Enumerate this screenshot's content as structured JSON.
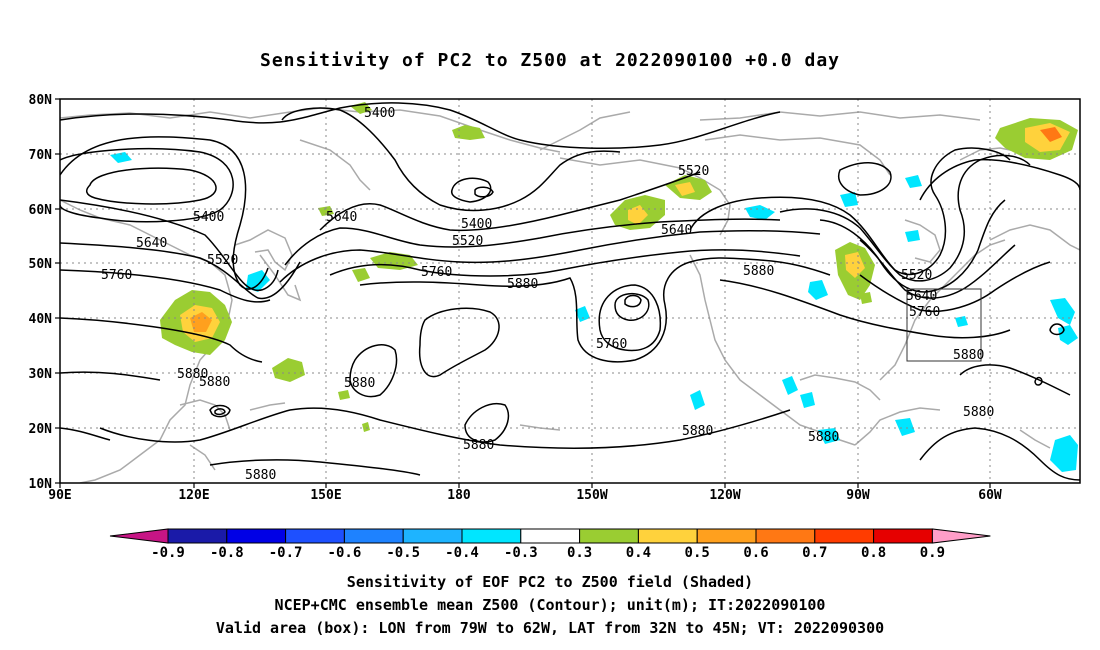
{
  "title": "Sensitivity of PC2 to Z500 at 2022090100 +0.0 day",
  "lat_ticks": [
    "80N",
    "70N",
    "60N",
    "50N",
    "40N",
    "30N",
    "20N",
    "10N"
  ],
  "lon_ticks": [
    "90E",
    "120E",
    "150E",
    "180",
    "150W",
    "120W",
    "90W",
    "60W"
  ],
  "contour_labels": [
    {
      "text": "5400",
      "key": "a"
    },
    {
      "text": "5520",
      "key": "b"
    },
    {
      "text": "5400",
      "key": "c"
    },
    {
      "text": "5640",
      "key": "d"
    },
    {
      "text": "5400",
      "key": "e"
    },
    {
      "text": "5520",
      "key": "f"
    },
    {
      "text": "5640",
      "key": "g"
    },
    {
      "text": "5520",
      "key": "h"
    },
    {
      "text": "5640",
      "key": "i"
    },
    {
      "text": "5760",
      "key": "j"
    },
    {
      "text": "5760",
      "key": "k"
    },
    {
      "text": "5880",
      "key": "l"
    },
    {
      "text": "5880",
      "key": "m"
    },
    {
      "text": "5520",
      "key": "n"
    },
    {
      "text": "5640",
      "key": "o"
    },
    {
      "text": "5760",
      "key": "p"
    },
    {
      "text": "5880",
      "key": "q"
    },
    {
      "text": "5760",
      "key": "r"
    },
    {
      "text": "5880",
      "key": "s"
    },
    {
      "text": "5880",
      "key": "t"
    },
    {
      "text": "5880",
      "key": "u"
    },
    {
      "text": "5880",
      "key": "v"
    },
    {
      "text": "5880",
      "key": "w"
    },
    {
      "text": "5880",
      "key": "x"
    },
    {
      "text": "5880",
      "key": "y"
    },
    {
      "text": "5880",
      "key": "z"
    }
  ],
  "colorbar": {
    "labels": [
      "-0.9",
      "-0.8",
      "-0.7",
      "-0.6",
      "-0.5",
      "-0.4",
      "-0.3",
      "0.3",
      "0.4",
      "0.5",
      "0.6",
      "0.7",
      "0.8",
      "0.9"
    ],
    "colors": [
      "#1a1aa8",
      "#0000e6",
      "#1e50ff",
      "#1e82ff",
      "#1eb4ff",
      "#00e6ff",
      "#ffffff",
      "#9acd32",
      "#ffd23c",
      "#ffa01e",
      "#ff7814",
      "#ff3c00",
      "#e60000"
    ],
    "low_end_color": "#c71585",
    "high_end_color": "#ff9ec8"
  },
  "footer": {
    "line1": "Sensitivity of EOF PC2 to Z500 field (Shaded)",
    "line2": "NCEP+CMC ensemble mean Z500 (Contour); unit(m); IT:2022090100",
    "line3": "Valid area (box): LON from 79W to 62W, LAT from 32N to 45N; VT: 2022090300"
  }
}
